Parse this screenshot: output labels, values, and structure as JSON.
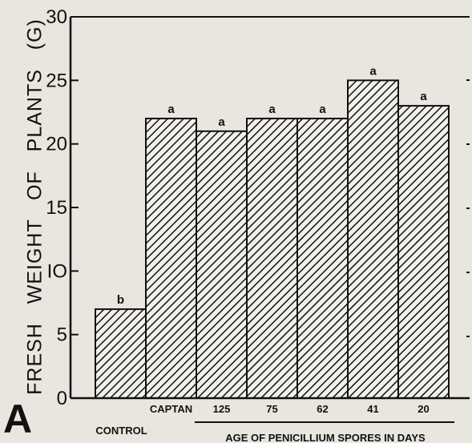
{
  "panel_letter": "A",
  "chart_data": {
    "type": "bar",
    "title": "",
    "ylabel": "FRESH   WEIGHT   OF   PLANTS   (G)",
    "xlabel": "AGE  OF  PENICILLIUM  SPORES  IN  DAYS",
    "ylim": [
      0,
      30
    ],
    "yticks": [
      "0",
      "5",
      "IO",
      "15",
      "20",
      "25",
      "30"
    ],
    "categories": [
      "CONTROL",
      "CAPTAN",
      "125",
      "75",
      "62",
      "41",
      "20"
    ],
    "values": [
      7,
      22,
      21,
      22,
      22,
      25,
      23
    ],
    "data_labels": [
      "b",
      "a",
      "a",
      "a",
      "a",
      "a",
      "a"
    ],
    "grid": false,
    "bar_fill": "diagonal-hatch",
    "colors": {
      "ink": "#111111",
      "paper": "#e9e6df"
    }
  }
}
